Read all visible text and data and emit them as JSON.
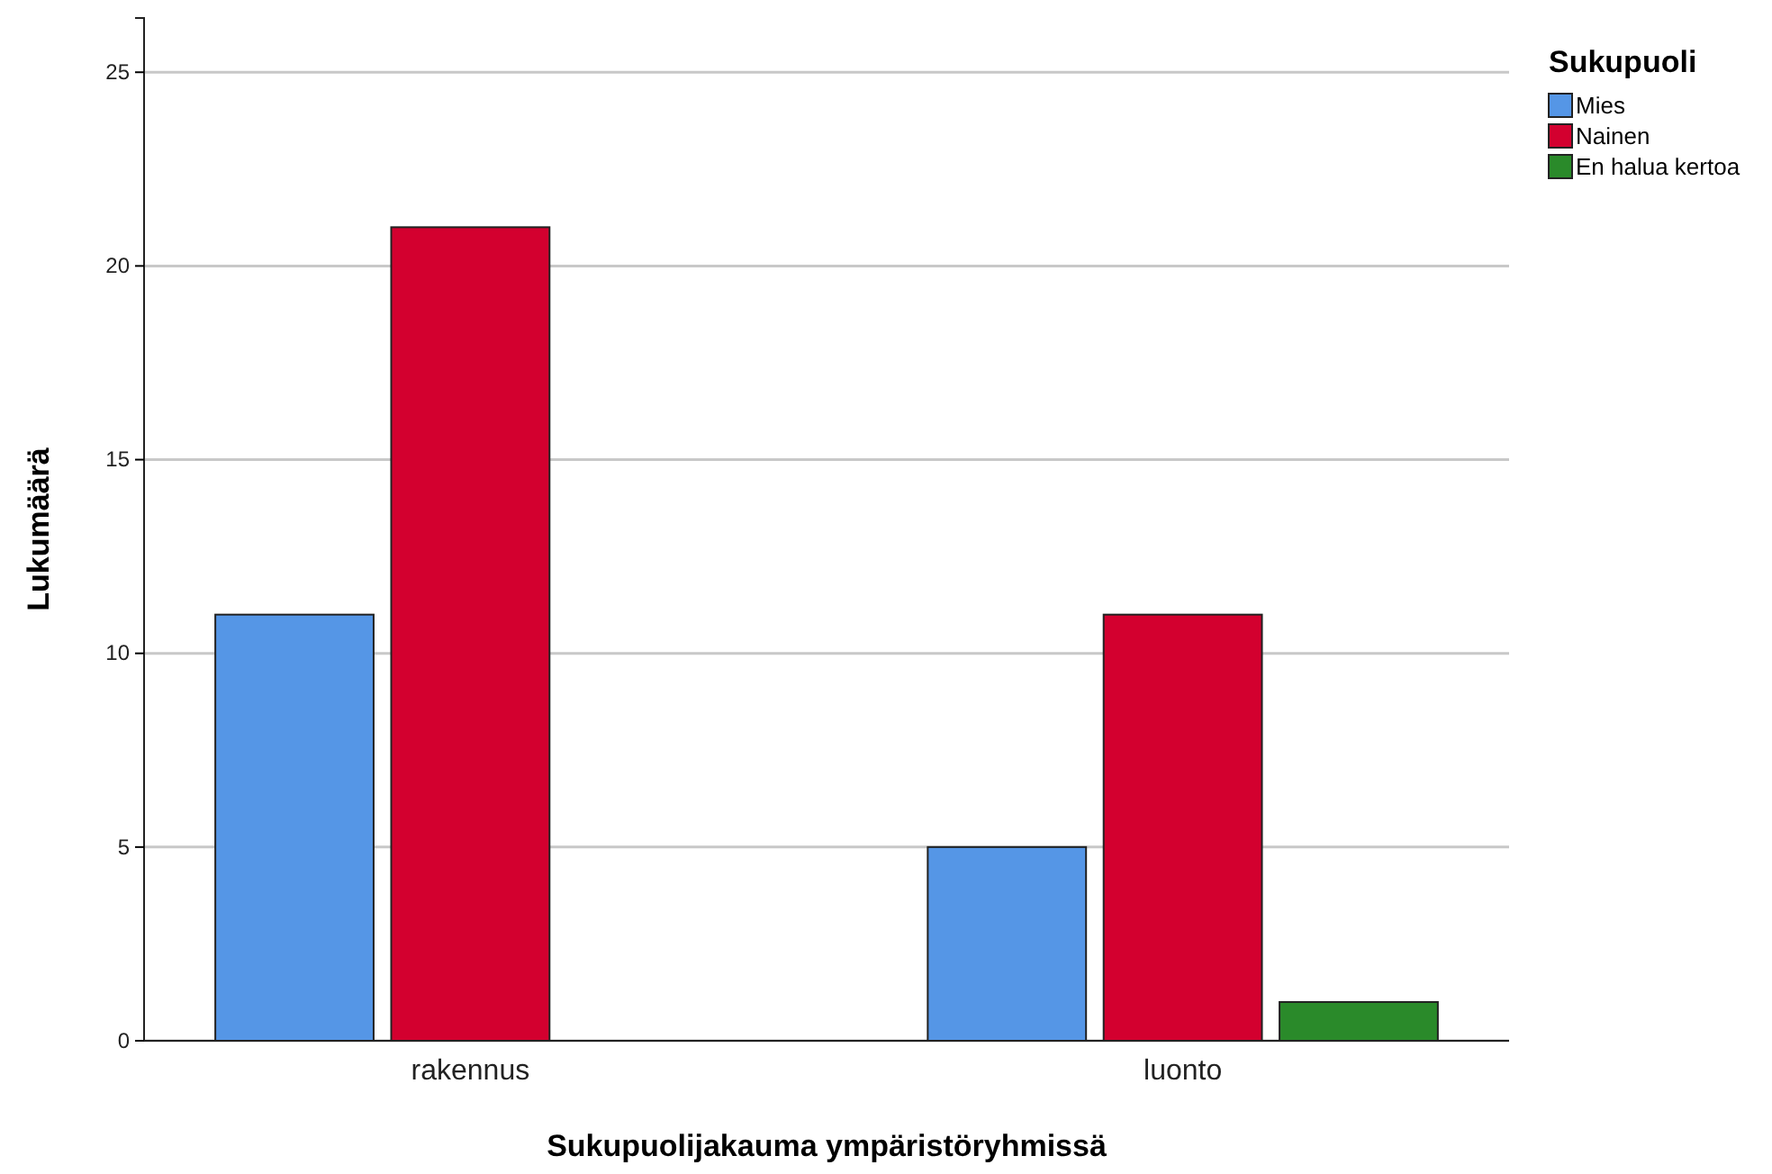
{
  "chart_data": {
    "type": "bar",
    "xlabel": "Sukupuolijakauma ympäristöryhmissä",
    "ylabel": "Lukumäärä",
    "legend_title": "Sukupuoli",
    "categories": [
      "rakennus",
      "luonto"
    ],
    "series": [
      {
        "name": "Mies",
        "color": "#5596e6",
        "values": [
          11,
          5
        ]
      },
      {
        "name": "Nainen",
        "color": "#d3002f",
        "values": [
          21,
          11
        ]
      },
      {
        "name": "En halua kertoa",
        "color": "#2a8a2a",
        "values": [
          0,
          1
        ]
      }
    ],
    "ylim": [
      0,
      26.4
    ],
    "yticks": [
      0,
      5,
      10,
      15,
      20,
      25
    ],
    "grid": "y",
    "legend": "top right"
  }
}
